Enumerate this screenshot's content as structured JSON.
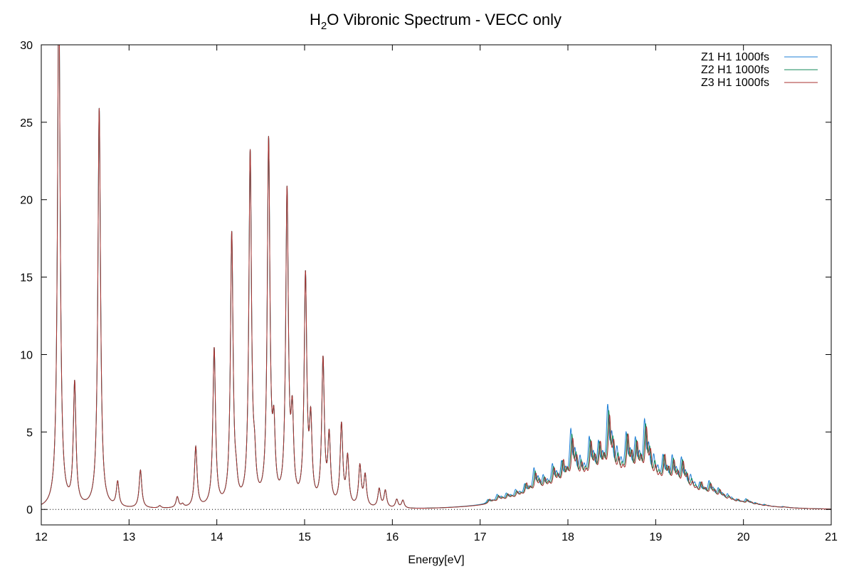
{
  "chart_data": {
    "type": "line",
    "title": {
      "prefix": "H",
      "subscript": "2",
      "suffix": "O Vibronic Spectrum - VECC only"
    },
    "xlabel": "Energy[eV]",
    "ylabel": "",
    "xlim": [
      12,
      21
    ],
    "ylim": [
      -1,
      30
    ],
    "xticks": [
      12,
      13,
      14,
      15,
      16,
      17,
      18,
      19,
      20,
      21
    ],
    "yticks": [
      0,
      5,
      10,
      15,
      20,
      25,
      30
    ],
    "zero_line": true,
    "grid": false,
    "legend_position": "top-right",
    "line_width_eV": 0.018,
    "peaks": [
      {
        "x": 12.2,
        "y": 34.0
      },
      {
        "x": 12.38,
        "y": 7.9
      },
      {
        "x": 12.66,
        "y": 25.8
      },
      {
        "x": 12.87,
        "y": 1.6
      },
      {
        "x": 13.13,
        "y": 2.45
      },
      {
        "x": 13.35,
        "y": 0.15
      },
      {
        "x": 13.55,
        "y": 0.7
      },
      {
        "x": 13.61,
        "y": 0.2
      },
      {
        "x": 13.76,
        "y": 3.9
      },
      {
        "x": 13.97,
        "y": 10.2
      },
      {
        "x": 14.17,
        "y": 17.5
      },
      {
        "x": 14.22,
        "y": 1.0
      },
      {
        "x": 14.38,
        "y": 22.6
      },
      {
        "x": 14.43,
        "y": 2.0
      },
      {
        "x": 14.59,
        "y": 23.3
      },
      {
        "x": 14.65,
        "y": 4.2
      },
      {
        "x": 14.8,
        "y": 20.0
      },
      {
        "x": 14.86,
        "y": 5.2
      },
      {
        "x": 15.01,
        "y": 14.6
      },
      {
        "x": 15.07,
        "y": 5.0
      },
      {
        "x": 15.21,
        "y": 9.3
      },
      {
        "x": 15.28,
        "y": 4.3
      },
      {
        "x": 15.42,
        "y": 5.2
      },
      {
        "x": 15.49,
        "y": 3.1
      },
      {
        "x": 15.63,
        "y": 2.6
      },
      {
        "x": 15.69,
        "y": 2.0
      },
      {
        "x": 15.85,
        "y": 1.2
      },
      {
        "x": 15.92,
        "y": 1.1
      },
      {
        "x": 16.05,
        "y": 0.55
      },
      {
        "x": 16.12,
        "y": 0.5
      }
    ],
    "band": {
      "center": 18.55,
      "width": 0.92,
      "height": 3.6,
      "spacing": 0.105,
      "start": 17.1,
      "end": 20.9
    },
    "series": [
      {
        "name": "Z1 H1 1000fs",
        "color": "#1e7fd6",
        "band_shift": -0.012,
        "band_scale": 1.06
      },
      {
        "name": "Z2 H1 1000fs",
        "color": "#138a5a",
        "band_shift": 0.0,
        "band_scale": 1.0
      },
      {
        "name": "Z3 H1 1000fs",
        "color": "#a8302f",
        "band_shift": 0.01,
        "band_scale": 0.97
      }
    ]
  }
}
